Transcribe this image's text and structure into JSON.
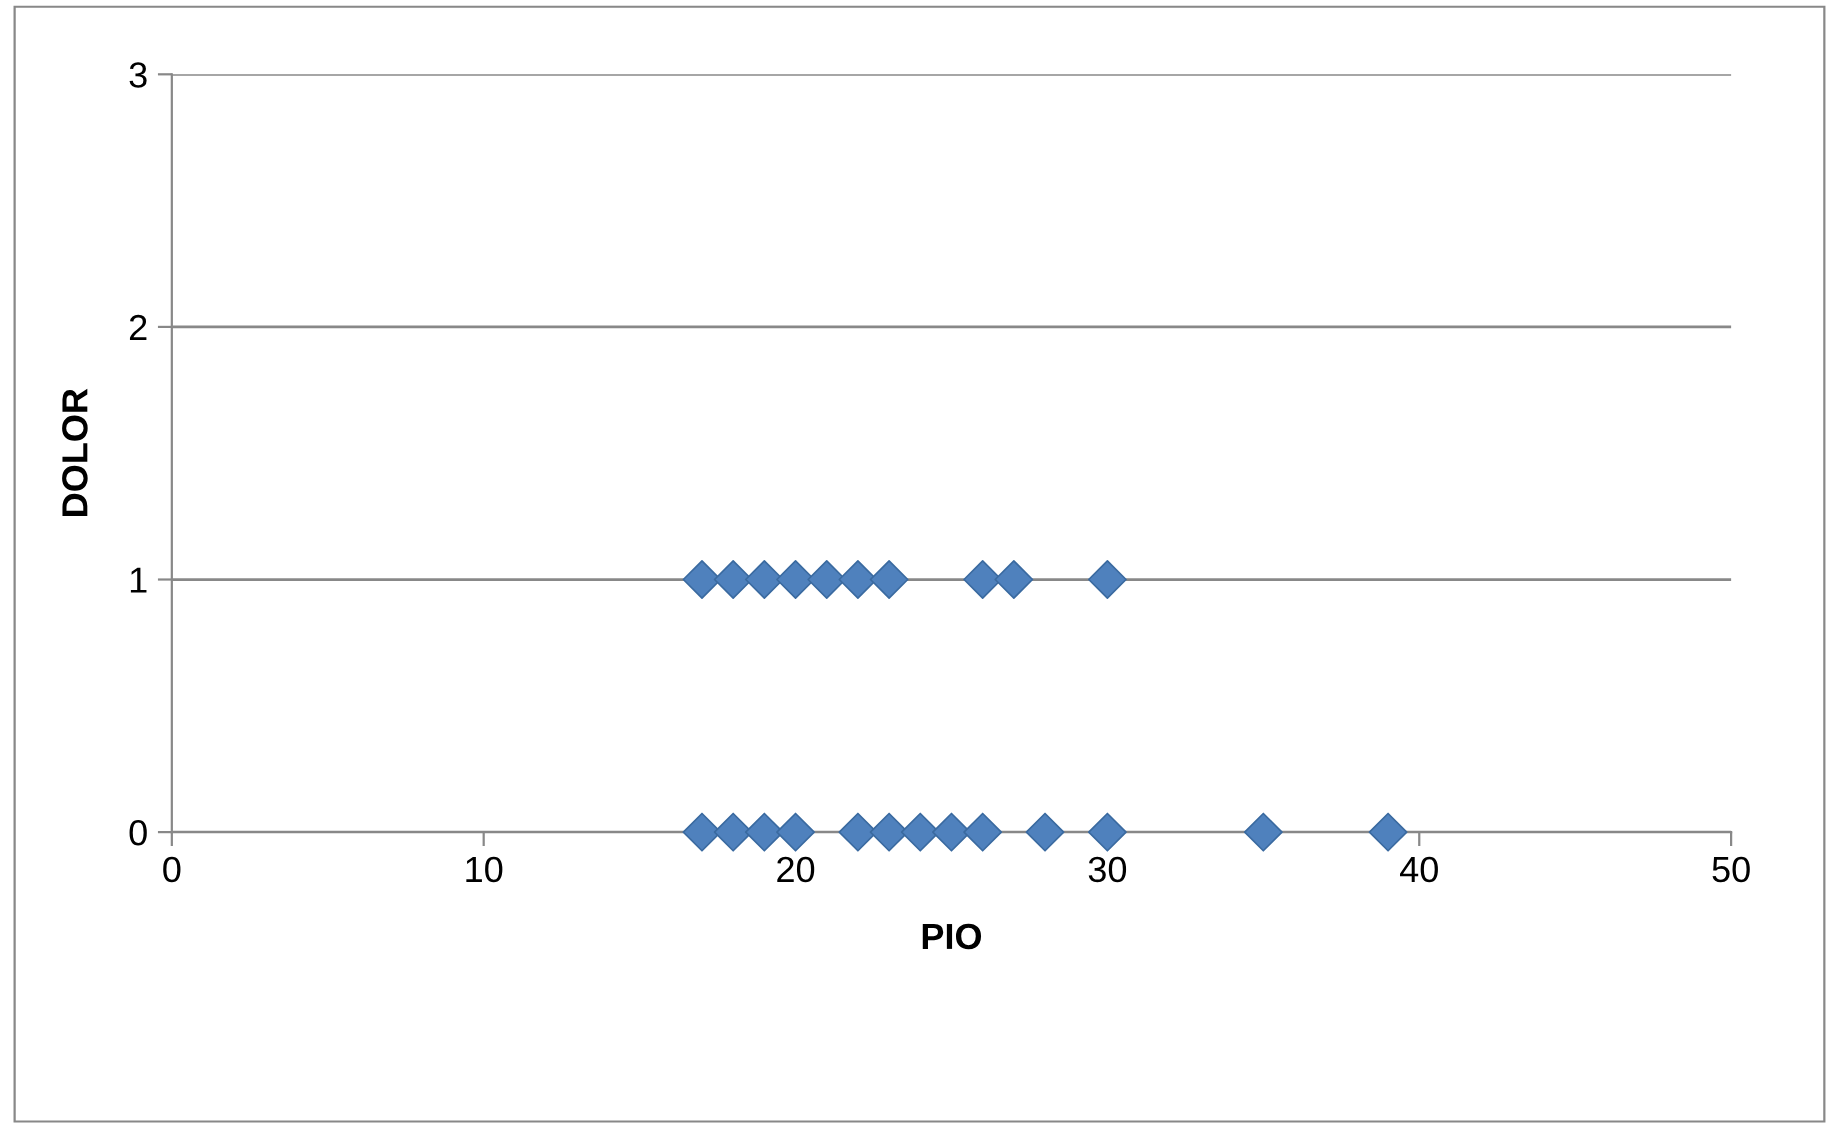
{
  "chart_data": {
    "type": "scatter",
    "xlabel": "PIO",
    "ylabel": "DOLOR",
    "x": [
      17,
      18,
      19,
      20,
      21,
      22,
      23,
      26,
      27,
      30,
      17,
      18,
      19,
      20,
      22,
      23,
      24,
      25,
      26,
      28,
      30,
      35,
      39
    ],
    "values": [
      1,
      1,
      1,
      1,
      1,
      1,
      1,
      1,
      1,
      1,
      0,
      0,
      0,
      0,
      0,
      0,
      0,
      0,
      0,
      0,
      0,
      0,
      0
    ],
    "color": "#4f81bd",
    "marker": "diamond",
    "grid": "y",
    "legend": false,
    "xlim": [
      0,
      50
    ],
    "xticks": [
      0,
      10,
      20,
      30,
      40,
      50
    ],
    "ylim": [
      0,
      3
    ],
    "yticks": [
      0,
      1,
      2,
      3
    ]
  }
}
